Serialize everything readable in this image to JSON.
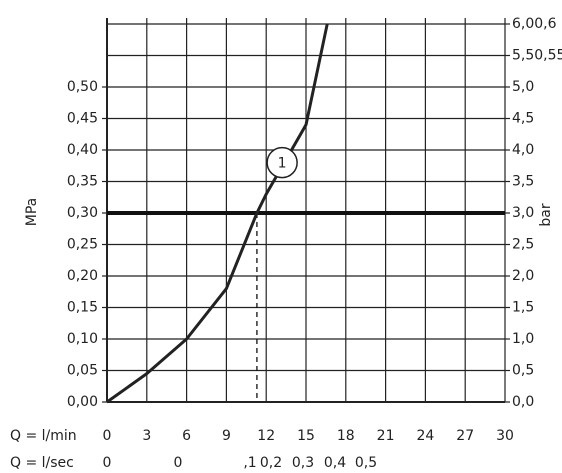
{
  "chart_data": {
    "type": "line",
    "x_label": "Q = l/min",
    "x2_label": "Q = l/sec",
    "x2_labels": [
      "0",
      "0",
      ",1",
      "0,2",
      "0,3",
      "0,4",
      "0,5"
    ],
    "y_label": "MPa",
    "y2_label": "bar",
    "x": [
      0,
      3,
      6,
      9,
      11.3,
      12,
      15,
      16.6
    ],
    "series": [
      {
        "name": "1",
        "color": "#222222",
        "values": [
          0,
          0.045,
          0.1,
          0.18,
          0.3,
          0.33,
          0.44,
          0.6
        ]
      }
    ],
    "xlim": [
      0,
      30
    ],
    "xticks": [
      0,
      3,
      6,
      9,
      12,
      15,
      18,
      21,
      24,
      27,
      30
    ],
    "ylim": [
      0,
      0.6
    ],
    "yticks": [
      {
        "value": 0,
        "label": "0,00"
      },
      {
        "value": 0.05,
        "label": "0,05"
      },
      {
        "value": 0.1,
        "label": "0,10"
      },
      {
        "value": 0.15,
        "label": "0,15"
      },
      {
        "value": 0.2,
        "label": "0,20"
      },
      {
        "value": 0.25,
        "label": "0,25"
      },
      {
        "value": 0.3,
        "label": "0,30"
      },
      {
        "value": 0.35,
        "label": "0,35"
      },
      {
        "value": 0.4,
        "label": "0,40"
      },
      {
        "value": 0.45,
        "label": "0,45"
      },
      {
        "value": 0.5,
        "label": "0,50"
      }
    ],
    "y2lim": [
      0,
      6
    ],
    "y2ticks": [
      {
        "value": 0,
        "label": "0,0"
      },
      {
        "value": 0.5,
        "label": "0,5"
      },
      {
        "value": 1,
        "label": "1,0"
      },
      {
        "value": 1.5,
        "label": "1,5"
      },
      {
        "value": 2,
        "label": "2,0"
      },
      {
        "value": 2.5,
        "label": "2,5"
      },
      {
        "value": 3,
        "label": "3,0"
      },
      {
        "value": 3.5,
        "label": "3,5"
      },
      {
        "value": 4,
        "label": "4,0"
      },
      {
        "value": 4.5,
        "label": "4,5"
      },
      {
        "value": 5,
        "label": "5,0"
      },
      {
        "value": 5.5,
        "label": "5,50,55"
      },
      {
        "value": 6,
        "label": "6,00,6"
      }
    ],
    "grid": true,
    "threshold": 0.3,
    "marker_x": 11.3,
    "annotation": {
      "text": "1",
      "x": 13.2,
      "y": 0.38
    }
  }
}
